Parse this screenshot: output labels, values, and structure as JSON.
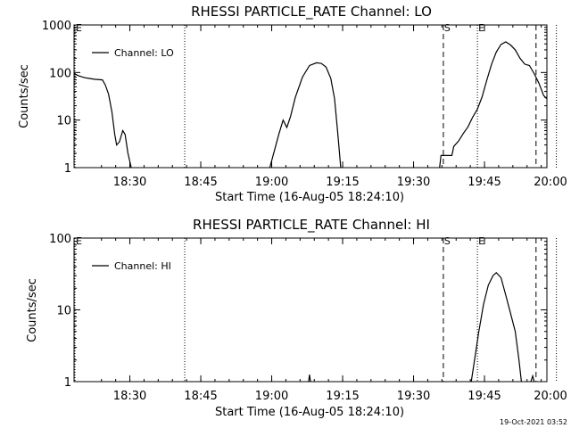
{
  "footer": {
    "timestamp": "19-Oct-2021 03:52"
  },
  "chart_data": [
    {
      "type": "line",
      "title": "RHESSI PARTICLE_RATE Channel: LO",
      "xlabel": "Start Time (16-Aug-05 18:24:10)",
      "ylabel": "Counts/sec",
      "legend": {
        "label": "Channel: LO",
        "position": "top-left"
      },
      "xlim_minutes": [
        -5.8,
        94.2
      ],
      "x_ticks": [
        {
          "min": 6,
          "label": "18:30"
        },
        {
          "min": 21,
          "label": "18:45"
        },
        {
          "min": 36,
          "label": "19:00"
        },
        {
          "min": 51,
          "label": "19:15"
        },
        {
          "min": 66,
          "label": "19:30"
        },
        {
          "min": 81,
          "label": "19:45"
        },
        {
          "min": 96,
          "label": "20:00"
        }
      ],
      "ylim": [
        1,
        1000
      ],
      "y_scale": "log",
      "y_ticks": [
        {
          "v": 1,
          "label": "1"
        },
        {
          "v": 10,
          "label": "10"
        },
        {
          "v": 100,
          "label": "100"
        },
        {
          "v": 1000,
          "label": "1000"
        }
      ],
      "markers": [
        {
          "min": -5.6,
          "label": "E",
          "style": "dotted"
        },
        {
          "min": 17.6,
          "label": "",
          "style": "dotted"
        },
        {
          "min": 72.3,
          "label": "S",
          "style": "dashed"
        },
        {
          "min": 79.5,
          "label": "E",
          "style": "dotted"
        },
        {
          "min": 91.9,
          "label": "",
          "style": "dashed"
        },
        {
          "min": 96.2,
          "label": "",
          "style": "dotted"
        }
      ],
      "segments": [
        [
          [
            -5.8,
            95
          ],
          [
            -4.8,
            85
          ],
          [
            -3.6,
            78
          ],
          [
            -2.5,
            75
          ],
          [
            -1.5,
            72
          ],
          [
            0.2,
            70
          ],
          [
            0.8,
            55
          ],
          [
            1.5,
            35
          ],
          [
            2.2,
            15
          ],
          [
            2.8,
            5
          ],
          [
            3.2,
            3
          ],
          [
            3.8,
            3.5
          ],
          [
            4.5,
            6
          ],
          [
            5.0,
            5
          ],
          [
            5.6,
            2
          ],
          [
            6.3,
            1
          ]
        ],
        [
          [
            35.6,
            1
          ],
          [
            37.5,
            5
          ],
          [
            38.4,
            10
          ],
          [
            39.2,
            7
          ],
          [
            40.0,
            12
          ],
          [
            41.0,
            30
          ],
          [
            42.5,
            80
          ],
          [
            44.0,
            140
          ],
          [
            45.5,
            160
          ],
          [
            46.5,
            155
          ],
          [
            47.5,
            130
          ],
          [
            48.5,
            75
          ],
          [
            49.3,
            28
          ],
          [
            50.0,
            5
          ],
          [
            50.6,
            1
          ]
        ],
        [
          [
            71.5,
            1
          ],
          [
            71.8,
            1.8
          ],
          [
            72.3,
            1.8
          ],
          [
            73.0,
            1.8
          ],
          [
            74.1,
            1.8
          ],
          [
            74.5,
            2.8
          ],
          [
            75.5,
            3.6
          ],
          [
            76.5,
            5.2
          ],
          [
            77.5,
            7.2
          ],
          [
            78.5,
            11.5
          ],
          [
            79.5,
            17
          ],
          [
            80.5,
            31
          ],
          [
            81.5,
            70
          ],
          [
            82.5,
            150
          ],
          [
            83.5,
            270
          ],
          [
            84.5,
            390
          ],
          [
            85.5,
            440
          ],
          [
            86.5,
            380
          ],
          [
            87.5,
            300
          ],
          [
            88.5,
            200
          ],
          [
            89.5,
            150
          ],
          [
            90.5,
            140
          ],
          [
            91.5,
            95
          ],
          [
            92.5,
            60
          ],
          [
            93.5,
            33
          ],
          [
            94.2,
            28
          ],
          [
            95.2,
            34
          ]
        ]
      ]
    },
    {
      "type": "line",
      "title": "RHESSI PARTICLE_RATE Channel: HI",
      "xlabel": "Start Time (16-Aug-05 18:24:10)",
      "ylabel": "Counts/sec",
      "legend": {
        "label": "Channel: HI",
        "position": "top-left"
      },
      "xlim_minutes": [
        -5.8,
        94.2
      ],
      "x_ticks": [
        {
          "min": 6,
          "label": "18:30"
        },
        {
          "min": 21,
          "label": "18:45"
        },
        {
          "min": 36,
          "label": "19:00"
        },
        {
          "min": 51,
          "label": "19:15"
        },
        {
          "min": 66,
          "label": "19:30"
        },
        {
          "min": 81,
          "label": "19:45"
        },
        {
          "min": 96,
          "label": "20:00"
        }
      ],
      "ylim": [
        1,
        100
      ],
      "y_scale": "log",
      "y_ticks": [
        {
          "v": 1,
          "label": "1"
        },
        {
          "v": 10,
          "label": "10"
        },
        {
          "v": 100,
          "label": "100"
        }
      ],
      "markers": [
        {
          "min": -5.6,
          "label": "E",
          "style": "dotted"
        },
        {
          "min": 17.6,
          "label": "",
          "style": "dotted"
        },
        {
          "min": 72.3,
          "label": "S",
          "style": "dashed"
        },
        {
          "min": 79.5,
          "label": "E",
          "style": "dotted"
        },
        {
          "min": 91.9,
          "label": "",
          "style": "dashed"
        },
        {
          "min": 96.2,
          "label": "",
          "style": "dotted"
        }
      ],
      "segments": [
        [
          [
            43.8,
            1
          ],
          [
            44.0,
            1.25
          ],
          [
            44.2,
            1
          ]
        ],
        [
          [
            78.2,
            1
          ],
          [
            79.0,
            2.2
          ],
          [
            79.8,
            5
          ],
          [
            80.8,
            12
          ],
          [
            81.8,
            22
          ],
          [
            82.8,
            30
          ],
          [
            83.5,
            33
          ],
          [
            84.5,
            28
          ],
          [
            85.5,
            16
          ],
          [
            86.5,
            9
          ],
          [
            87.5,
            5
          ],
          [
            88.3,
            2
          ],
          [
            88.8,
            1
          ]
        ],
        [
          [
            90.8,
            1
          ],
          [
            91.2,
            1.2
          ],
          [
            91.5,
            1
          ]
        ]
      ]
    }
  ]
}
